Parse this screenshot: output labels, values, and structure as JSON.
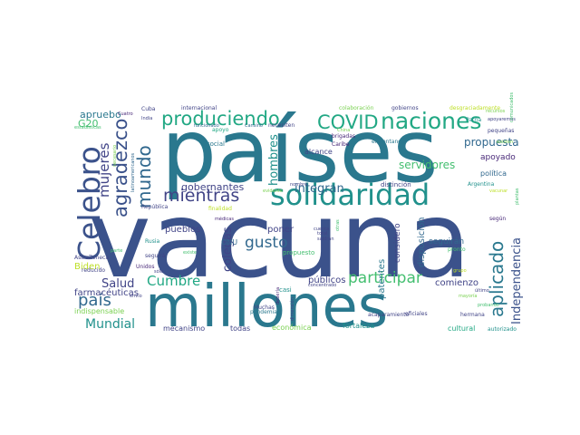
{
  "palette": {
    "navy": "#3b528b",
    "indigo": "#414487",
    "blue": "#31688e",
    "teal": "#2a788e",
    "sea": "#21918c",
    "green": "#22a884",
    "mint": "#44bf70",
    "lime": "#7ad151",
    "yellow": "#bddf26",
    "purple": "#482878",
    "dark": "#440154"
  },
  "words": [
    {
      "text": "países",
      "color": "teal"
    },
    {
      "text": "vacuna",
      "color": "navy"
    },
    {
      "text": "millones",
      "color": "teal"
    },
    {
      "text": "solidaridad",
      "color": "sea"
    },
    {
      "text": "naciones",
      "color": "green"
    },
    {
      "text": "Celebro",
      "color": "navy"
    },
    {
      "text": "produciendo",
      "color": "green"
    },
    {
      "text": "COVID",
      "color": "green"
    },
    {
      "text": "mundo",
      "color": "blue"
    },
    {
      "text": "agradezco",
      "color": "navy"
    },
    {
      "text": "mientras",
      "color": "indigo"
    },
    {
      "text": "aplicado",
      "color": "teal"
    },
    {
      "text": "participar",
      "color": "mint"
    },
    {
      "text": "país",
      "color": "blue"
    },
    {
      "text": "Independencia",
      "color": "navy"
    },
    {
      "text": "Cumbre",
      "color": "green"
    },
    {
      "text": "gusto",
      "color": "blue"
    },
    {
      "text": "mujeres",
      "color": "indigo"
    },
    {
      "text": "hombres",
      "color": "sea"
    },
    {
      "text": "colegas",
      "color": "indigo"
    },
    {
      "text": "Mundial",
      "color": "sea"
    },
    {
      "text": "Salud",
      "color": "indigo"
    },
    {
      "text": "integran",
      "color": "blue"
    },
    {
      "text": "servidores",
      "color": "mint"
    },
    {
      "text": "propuesta",
      "color": "blue"
    },
    {
      "text": "gobernantes",
      "color": "indigo"
    },
    {
      "text": "apruebo",
      "color": "teal"
    },
    {
      "text": "G20",
      "color": "mint"
    },
    {
      "text": "Biden",
      "color": "yellow"
    },
    {
      "text": "farmacéuticas",
      "color": "indigo"
    },
    {
      "text": "pueblos",
      "color": "indigo"
    },
    {
      "text": "poner",
      "color": "indigo"
    },
    {
      "text": "públicos",
      "color": "indigo"
    },
    {
      "text": "comienzo",
      "color": "indigo"
    },
    {
      "text": "disposición",
      "color": "blue"
    },
    {
      "text": "considero",
      "color": "indigo"
    },
    {
      "text": "patentes",
      "color": "teal"
    },
    {
      "text": "seguirán",
      "color": "blue"
    },
    {
      "text": "apoyado",
      "color": "purple"
    },
    {
      "text": "política",
      "color": "blue"
    },
    {
      "text": "fortaleza",
      "color": "sea"
    },
    {
      "text": "cultural",
      "color": "green"
    },
    {
      "text": "mecanismo",
      "color": "indigo"
    },
    {
      "text": "todas",
      "color": "indigo"
    },
    {
      "text": "económica",
      "color": "lime"
    },
    {
      "text": "ONU",
      "color": "blue"
    },
    {
      "text": "propuesto",
      "color": "mint"
    },
    {
      "text": "casi",
      "color": "sea"
    },
    {
      "text": "indispensable",
      "color": "lime"
    },
    {
      "text": "pandemia",
      "color": "teal"
    },
    {
      "text": "oficiales",
      "color": "indigo"
    },
    {
      "text": "distinción",
      "color": "indigo"
    },
    {
      "text": "alcance",
      "color": "indigo"
    },
    {
      "text": "brigadas",
      "color": "purple"
    },
    {
      "text": "Caribe",
      "color": "purple"
    },
    {
      "text": "enfrentando",
      "color": "teal"
    },
    {
      "text": "social",
      "color": "teal"
    },
    {
      "text": "apoyo",
      "color": "green"
    },
    {
      "text": "funcionado",
      "color": "blue"
    },
    {
      "text": "Cansino",
      "color": "blue"
    },
    {
      "text": "necesiten",
      "color": "indigo"
    },
    {
      "text": "internacional",
      "color": "indigo"
    },
    {
      "text": "colaboración",
      "color": "lime"
    },
    {
      "text": "gobiernos",
      "color": "indigo"
    },
    {
      "text": "desgraciadamente",
      "color": "yellow"
    },
    {
      "text": "China",
      "color": "lime"
    },
    {
      "text": "Cuba",
      "color": "indigo"
    },
    {
      "text": "India",
      "color": "indigo"
    },
    {
      "text": "Cuatro",
      "color": "purple"
    },
    {
      "text": "estadísticas",
      "color": "mint"
    },
    {
      "text": "latinoamericanos",
      "color": "blue"
    },
    {
      "text": "necesario",
      "color": "lime"
    },
    {
      "text": "República",
      "color": "indigo"
    },
    {
      "text": "finalidad",
      "color": "yellow"
    },
    {
      "text": "médicas",
      "color": "purple"
    },
    {
      "text": "Rusia",
      "color": "sea"
    },
    {
      "text": "seguirá",
      "color": "indigo"
    },
    {
      "text": "existe",
      "color": "mint"
    },
    {
      "text": "AstraZeneca",
      "color": "indigo"
    },
    {
      "text": "reducido",
      "color": "indigo"
    },
    {
      "text": "sólo",
      "color": "indigo"
    },
    {
      "text": "envío",
      "color": "indigo"
    },
    {
      "text": "Unidos",
      "color": "purple"
    },
    {
      "text": "parte",
      "color": "mint"
    },
    {
      "text": "Muchas",
      "color": "indigo"
    },
    {
      "text": "debería",
      "color": "purple"
    },
    {
      "text": "dimensión",
      "color": "indigo"
    },
    {
      "text": "concentrado",
      "color": "indigo"
    },
    {
      "text": "acaparamiento",
      "color": "indigo"
    },
    {
      "text": "hermana",
      "color": "indigo"
    },
    {
      "text": "autorizado",
      "color": "sea"
    },
    {
      "text": "mayoría",
      "color": "lime"
    },
    {
      "text": "último",
      "color": "indigo"
    },
    {
      "text": "probando",
      "color": "mint"
    },
    {
      "text": "grupo",
      "color": "yellow"
    },
    {
      "text": "pronto",
      "color": "mint"
    },
    {
      "text": "según",
      "color": "purple"
    },
    {
      "text": "Argentina",
      "color": "sea"
    },
    {
      "text": "plantas",
      "color": "mint"
    },
    {
      "text": "vacunar",
      "color": "yellow"
    },
    {
      "text": "nombre",
      "color": "indigo"
    },
    {
      "text": "evidente",
      "color": "lime"
    },
    {
      "text": "cuenta",
      "color": "indigo"
    },
    {
      "text": "total",
      "color": "indigo"
    },
    {
      "text": "saldrán",
      "color": "indigo"
    },
    {
      "text": "otras",
      "color": "mint"
    },
    {
      "text": "Patria",
      "color": "sea"
    },
    {
      "text": "pequeñas",
      "color": "indigo"
    },
    {
      "text": "apoyaremos",
      "color": "indigo"
    },
    {
      "text": "existen",
      "color": "lime"
    },
    {
      "text": "comunicados",
      "color": "mint"
    },
    {
      "text": "recursos",
      "color": "lime"
    }
  ]
}
